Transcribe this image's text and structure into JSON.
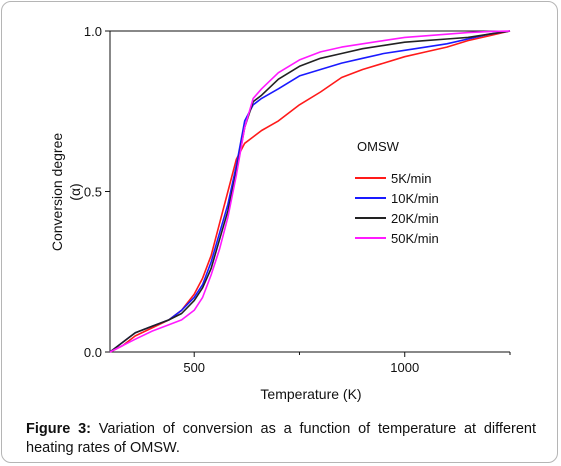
{
  "chart_data": {
    "type": "line",
    "xlabel": "Temperature (K)",
    "ylabel_lines": [
      "Conversion degree",
      "(α)"
    ],
    "xlim": [
      300,
      1250
    ],
    "ylim": [
      0,
      1
    ],
    "x_ticks": [
      500,
      1000
    ],
    "y_ticks": [
      0,
      0.5,
      1
    ],
    "x_tick_labels": [
      "500",
      "1000"
    ],
    "y_tick_labels": [
      "0.0",
      "0.5",
      "1.0"
    ],
    "legend_title": "OMSW",
    "legend_placement": "right-center",
    "grid": false,
    "series": [
      {
        "name": "5K/min",
        "color": "#ff1a1a",
        "x": [
          300,
          330,
          360,
          400,
          440,
          470,
          500,
          520,
          540,
          560,
          580,
          600,
          620,
          640,
          660,
          700,
          750,
          800,
          850,
          900,
          950,
          1000,
          1050,
          1100,
          1150,
          1200,
          1250
        ],
        "y": [
          0.0,
          0.02,
          0.05,
          0.075,
          0.1,
          0.13,
          0.18,
          0.23,
          0.3,
          0.4,
          0.5,
          0.6,
          0.65,
          0.67,
          0.69,
          0.72,
          0.77,
          0.81,
          0.855,
          0.88,
          0.9,
          0.92,
          0.935,
          0.95,
          0.97,
          0.985,
          1.0
        ]
      },
      {
        "name": "10K/min",
        "color": "#1a1aff",
        "x": [
          300,
          330,
          360,
          400,
          440,
          470,
          500,
          520,
          540,
          560,
          580,
          600,
          620,
          640,
          660,
          700,
          750,
          800,
          850,
          900,
          950,
          1000,
          1050,
          1100,
          1150,
          1200,
          1250
        ],
        "y": [
          0.0,
          0.03,
          0.06,
          0.08,
          0.1,
          0.13,
          0.17,
          0.21,
          0.28,
          0.37,
          0.46,
          0.58,
          0.72,
          0.77,
          0.79,
          0.82,
          0.86,
          0.88,
          0.9,
          0.915,
          0.93,
          0.94,
          0.95,
          0.96,
          0.975,
          0.99,
          1.0
        ]
      },
      {
        "name": "20K/min",
        "color": "#222222",
        "x": [
          300,
          330,
          360,
          400,
          440,
          470,
          500,
          520,
          540,
          560,
          580,
          600,
          620,
          640,
          660,
          700,
          750,
          800,
          850,
          900,
          950,
          1000,
          1050,
          1100,
          1150,
          1200,
          1250
        ],
        "y": [
          0.0,
          0.03,
          0.06,
          0.08,
          0.1,
          0.12,
          0.16,
          0.2,
          0.26,
          0.35,
          0.44,
          0.56,
          0.7,
          0.78,
          0.8,
          0.85,
          0.89,
          0.915,
          0.93,
          0.945,
          0.955,
          0.965,
          0.97,
          0.975,
          0.98,
          0.99,
          1.0
        ]
      },
      {
        "name": "50K/min",
        "color": "#ff1aff",
        "x": [
          300,
          330,
          360,
          400,
          440,
          470,
          500,
          520,
          540,
          560,
          580,
          600,
          620,
          640,
          660,
          700,
          750,
          800,
          850,
          900,
          950,
          1000,
          1050,
          1100,
          1150,
          1200,
          1250
        ],
        "y": [
          0.0,
          0.02,
          0.04,
          0.065,
          0.085,
          0.1,
          0.13,
          0.17,
          0.24,
          0.32,
          0.42,
          0.55,
          0.7,
          0.79,
          0.82,
          0.87,
          0.91,
          0.935,
          0.95,
          0.96,
          0.97,
          0.98,
          0.985,
          0.99,
          0.995,
          0.998,
          1.0
        ]
      }
    ]
  },
  "caption": {
    "label": "Figure 3:",
    "text": " Variation of conversion as a function of temperature at different heating rates of OMSW."
  }
}
